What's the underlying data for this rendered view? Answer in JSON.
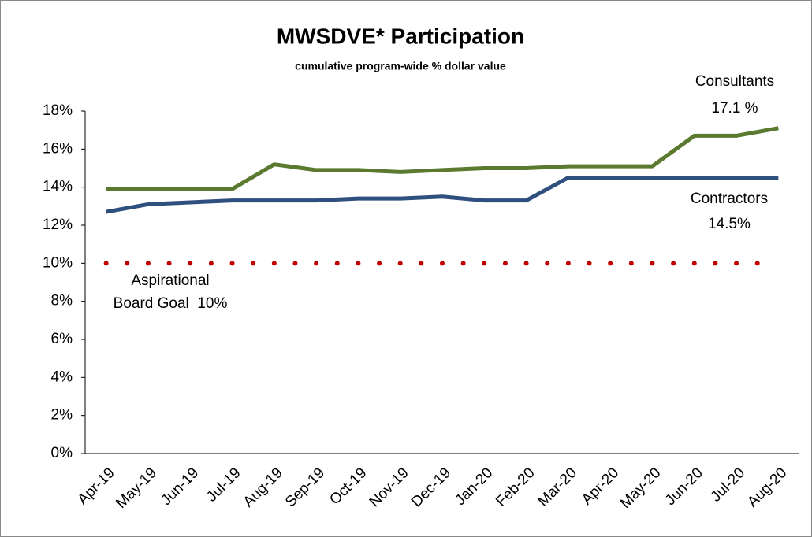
{
  "chart_data": {
    "type": "line",
    "title": "MWSDVE* Participation",
    "subtitle": "cumulative program-wide % dollar value",
    "categories": [
      "Apr-19",
      "May-19",
      "Jun-19",
      "Jul-19",
      "Aug-19",
      "Sep-19",
      "Oct-19",
      "Nov-19",
      "Dec-19",
      "Jan-20",
      "Feb-20",
      "Mar-20",
      "Apr-20",
      "May-20",
      "Jun-20",
      "Jul-20",
      "Aug-20"
    ],
    "series": [
      {
        "name": "Consultants",
        "color": "#5b7a2f",
        "values": [
          13.9,
          13.9,
          13.9,
          13.9,
          15.2,
          14.9,
          14.9,
          14.8,
          14.9,
          15.0,
          15.0,
          15.1,
          15.1,
          15.1,
          16.7,
          16.7,
          17.1
        ]
      },
      {
        "name": "Contractors",
        "color": "#2f4f7f",
        "values": [
          12.7,
          13.1,
          13.2,
          13.3,
          13.3,
          13.3,
          13.4,
          13.4,
          13.5,
          13.3,
          13.3,
          14.5,
          14.5,
          14.5,
          14.5,
          14.5,
          14.5
        ]
      },
      {
        "color": "#c00000",
        "dotted": true,
        "values": [
          10,
          10,
          10,
          10,
          10,
          10,
          10,
          10,
          10,
          10,
          10,
          10,
          10,
          10,
          10,
          10,
          10
        ]
      }
    ],
    "annotations": [
      "17.1 %",
      "14.5%",
      "Aspirational",
      "Board Goal  10%"
    ],
    "ylim": [
      0,
      18
    ],
    "yticks": [
      {
        "value": 0,
        "label": "0%"
      },
      {
        "value": 2,
        "label": "2%"
      },
      {
        "value": 4,
        "label": "4%"
      },
      {
        "value": 6,
        "label": "6%"
      },
      {
        "value": 8,
        "label": "8%"
      },
      {
        "value": 10,
        "label": "10%"
      },
      {
        "value": 12,
        "label": "12%"
      },
      {
        "value": 14,
        "label": "14%"
      },
      {
        "value": 16,
        "label": "16%"
      },
      {
        "value": 18,
        "label": "18%"
      }
    ],
    "grid": false
  }
}
